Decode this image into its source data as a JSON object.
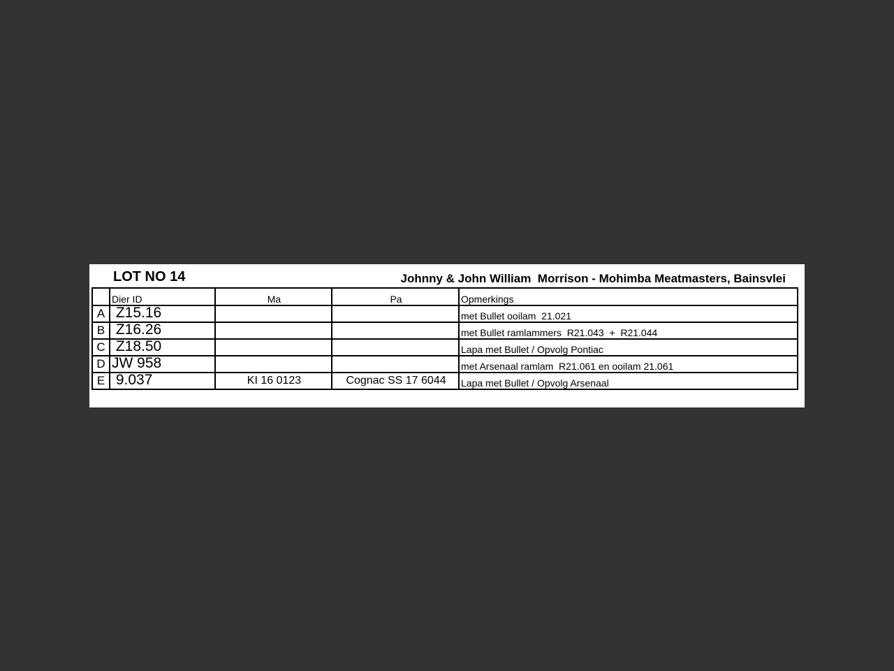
{
  "lot_title": "LOT NO 14",
  "owner": "Johnny & John William  Morrison - Mohimba Meatmasters, Bainsvlei",
  "columns": [
    "",
    "Dier ID",
    "Ma",
    "Pa",
    "Opmerkings"
  ],
  "rows": [
    {
      "letter": "A",
      "id": " Z15.16",
      "ma": "",
      "pa": "",
      "remark": "met Bullet ooilam  21.021"
    },
    {
      "letter": "B",
      "id": " Z16.26",
      "ma": "",
      "pa": "",
      "remark": "met Bullet ramlammers  R21.043  +  R21.044"
    },
    {
      "letter": "C",
      "id": " Z18.50",
      "ma": "",
      "pa": "",
      "remark": "Lapa met Bullet / Opvolg Pontiac"
    },
    {
      "letter": "D",
      "id": "JW 958",
      "ma": "",
      "pa": "",
      "remark": "met Arsenaal ramlam  R21.061 en ooilam 21.061"
    },
    {
      "letter": "E",
      "id": " 9.037",
      "ma": "KI 16 0123",
      "pa": "Cognac SS 17 6044",
      "remark": "Lapa met Bullet / Opvolg Arsenaal"
    }
  ]
}
